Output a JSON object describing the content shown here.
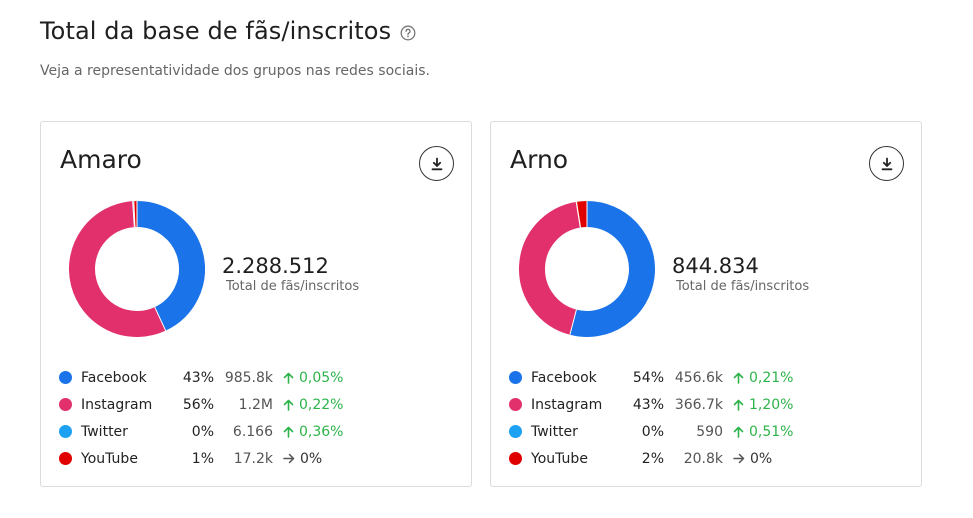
{
  "header": {
    "title": "Total da base de fãs/inscritos",
    "subtitle": "Veja a representatividade dos grupos nas redes sociais."
  },
  "colors": {
    "facebook": "#1a73e8",
    "instagram": "#e1306c",
    "twitter": "#1da1f2",
    "youtube": "#e00000",
    "positive": "#2eb34a"
  },
  "cards": [
    {
      "name": "Amaro",
      "total": "2.288.512",
      "total_label": "Total de fãs/inscritos",
      "download_icon": "download-icon",
      "networks": [
        {
          "name": "Facebook",
          "pct": "43%",
          "count": "985.8k",
          "change": "0,05%",
          "trend": "up",
          "color": "#1a73e8",
          "share": 43.08
        },
        {
          "name": "Instagram",
          "pct": "56%",
          "count": "1.2M",
          "change": "0,22%",
          "trend": "up",
          "color": "#e1306c",
          "share": 55.92
        },
        {
          "name": "Twitter",
          "pct": "0%",
          "count": "6.166",
          "change": "0,36%",
          "trend": "up",
          "color": "#1da1f2",
          "share": 0.27
        },
        {
          "name": "YouTube",
          "pct": "1%",
          "count": "17.2k",
          "change": "0%",
          "trend": "flat",
          "color": "#e00000",
          "share": 0.75
        }
      ]
    },
    {
      "name": "Arno",
      "total": "844.834",
      "total_label": "Total de fãs/inscritos",
      "download_icon": "download-icon",
      "networks": [
        {
          "name": "Facebook",
          "pct": "54%",
          "count": "456.6k",
          "change": "0,21%",
          "trend": "up",
          "color": "#1a73e8",
          "share": 54.05
        },
        {
          "name": "Instagram",
          "pct": "43%",
          "count": "366.7k",
          "change": "1,20%",
          "trend": "up",
          "color": "#e1306c",
          "share": 43.41
        },
        {
          "name": "Twitter",
          "pct": "0%",
          "count": "590",
          "change": "0,51%",
          "trend": "up",
          "color": "#1da1f2",
          "share": 0.07
        },
        {
          "name": "YouTube",
          "pct": "2%",
          "count": "20.8k",
          "change": "0%",
          "trend": "flat",
          "color": "#e00000",
          "share": 2.47
        }
      ]
    }
  ]
}
